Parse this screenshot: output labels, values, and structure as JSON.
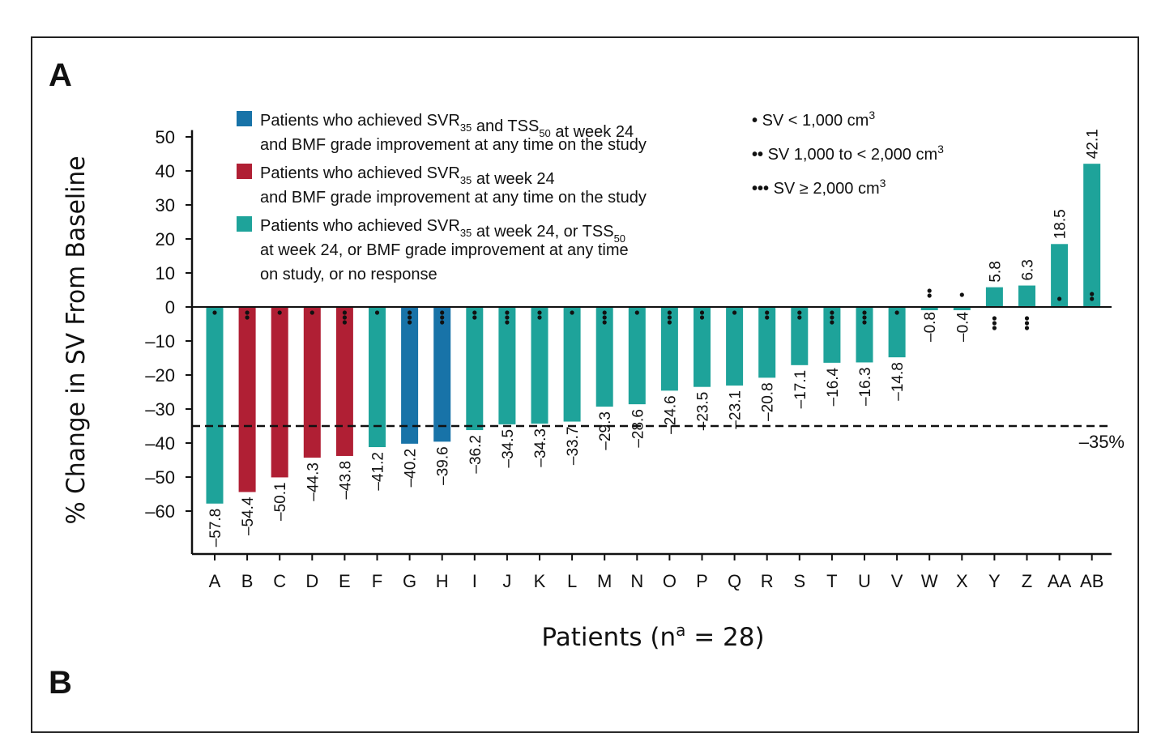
{
  "panel_a": "A",
  "panel_b": "B",
  "chart_data": {
    "type": "bar",
    "title": "",
    "xlabel": "Patients (n",
    "xlabel_sup": "a",
    "xlabel_rest": " = 28)",
    "ylabel": "% Change in SV From Baseline",
    "ylim": [
      -72,
      52
    ],
    "yticks": [
      50,
      40,
      30,
      20,
      10,
      0,
      -10,
      -20,
      -30,
      -40,
      -50,
      -60
    ],
    "ytick_labels": [
      "50",
      "40",
      "30",
      "20",
      "10",
      "0",
      "–10",
      "–20",
      "–30",
      "–40",
      "–50",
      "–60"
    ],
    "categories": [
      "A",
      "B",
      "C",
      "D",
      "E",
      "F",
      "G",
      "H",
      "I",
      "J",
      "K",
      "L",
      "M",
      "N",
      "O",
      "P",
      "Q",
      "R",
      "S",
      "T",
      "U",
      "V",
      "W",
      "X",
      "Y",
      "Z",
      "AA",
      "AB"
    ],
    "values": [
      -57.8,
      -54.4,
      -50.1,
      -44.3,
      -43.8,
      -41.2,
      -40.2,
      -39.6,
      -36.2,
      -34.5,
      -34.3,
      -33.7,
      -29.3,
      -28.6,
      -24.6,
      -23.5,
      -23.1,
      -20.8,
      -17.1,
      -16.4,
      -16.3,
      -14.8,
      -0.8,
      -0.4,
      5.8,
      6.3,
      18.5,
      42.1
    ],
    "value_labels": [
      "–57.8",
      "–54.4",
      "–50.1",
      "–44.3",
      "–43.8",
      "–41.2",
      "–40.2",
      "–39.6",
      "–36.2",
      "–34.5",
      "–34.3",
      "–33.7",
      "–29.3",
      "–28.6",
      "–24.6",
      "–23.5",
      "–23.1",
      "–20.8",
      "–17.1",
      "–16.4",
      "–16.3",
      "–14.8",
      "–0.8",
      "–0.4",
      "5.8",
      "6.3",
      "18.5",
      "42.1"
    ],
    "groups": [
      3,
      2,
      2,
      2,
      2,
      3,
      1,
      1,
      3,
      3,
      3,
      3,
      3,
      3,
      3,
      3,
      3,
      3,
      3,
      3,
      3,
      3,
      3,
      3,
      3,
      3,
      3,
      3
    ],
    "sv_dots": [
      1,
      2,
      1,
      1,
      3,
      1,
      3,
      3,
      2,
      3,
      2,
      1,
      3,
      1,
      3,
      2,
      1,
      2,
      2,
      3,
      3,
      1,
      2,
      1,
      3,
      3,
      1,
      2
    ],
    "colors": {
      "1": "#1873a8",
      "2": "#b01f34",
      "3": "#1ea39a"
    },
    "reference_line": {
      "value": -35,
      "label": "–35%"
    },
    "legend": [
      {
        "group": 1,
        "line1": "Patients who achieved SVR",
        "sub1": "35",
        "mid": " and TSS",
        "sub2": "50",
        "end": " at week 24",
        "line2": "and BMF grade improvement at any time on the study"
      },
      {
        "group": 2,
        "line1": "Patients who achieved SVR",
        "sub1": "35",
        "end": " at week 24",
        "line2": "and BMF grade improvement at any time on the study"
      },
      {
        "group": 3,
        "line1": "Patients who achieved SVR",
        "sub1": "35",
        "mid": " at week 24, or TSS",
        "sub2": "50",
        "line2": "at week 24, or BMF grade improvement at any time",
        "line3": "on study, or no response"
      }
    ],
    "sv_legend": [
      {
        "dots": "•",
        "text": "SV < 1,000 cm",
        "sup": "3"
      },
      {
        "dots": "••",
        "text": "SV 1,000 to < 2,000 cm",
        "sup": "3"
      },
      {
        "dots": "•••",
        "text": "SV ≥ 2,000 cm",
        "sup": "3"
      }
    ]
  }
}
